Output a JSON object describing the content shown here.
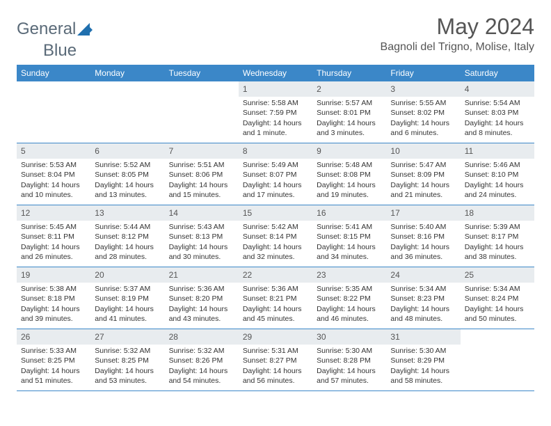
{
  "logo": {
    "word1": "General",
    "word2": "Blue"
  },
  "colors": {
    "header_bg": "#3b87c8",
    "daynum_bg": "#e8ecef",
    "logo_accent": "#1f6fae"
  },
  "title": "May 2024",
  "location": "Bagnoli del Trigno, Molise, Italy",
  "day_headers": [
    "Sunday",
    "Monday",
    "Tuesday",
    "Wednesday",
    "Thursday",
    "Friday",
    "Saturday"
  ],
  "weeks": [
    [
      {
        "empty": true
      },
      {
        "empty": true
      },
      {
        "empty": true
      },
      {
        "day": "1",
        "sunrise": "Sunrise: 5:58 AM",
        "sunset": "Sunset: 7:59 PM",
        "daylight": "Daylight: 14 hours and 1 minute."
      },
      {
        "day": "2",
        "sunrise": "Sunrise: 5:57 AM",
        "sunset": "Sunset: 8:01 PM",
        "daylight": "Daylight: 14 hours and 3 minutes."
      },
      {
        "day": "3",
        "sunrise": "Sunrise: 5:55 AM",
        "sunset": "Sunset: 8:02 PM",
        "daylight": "Daylight: 14 hours and 6 minutes."
      },
      {
        "day": "4",
        "sunrise": "Sunrise: 5:54 AM",
        "sunset": "Sunset: 8:03 PM",
        "daylight": "Daylight: 14 hours and 8 minutes."
      }
    ],
    [
      {
        "day": "5",
        "sunrise": "Sunrise: 5:53 AM",
        "sunset": "Sunset: 8:04 PM",
        "daylight": "Daylight: 14 hours and 10 minutes."
      },
      {
        "day": "6",
        "sunrise": "Sunrise: 5:52 AM",
        "sunset": "Sunset: 8:05 PM",
        "daylight": "Daylight: 14 hours and 13 minutes."
      },
      {
        "day": "7",
        "sunrise": "Sunrise: 5:51 AM",
        "sunset": "Sunset: 8:06 PM",
        "daylight": "Daylight: 14 hours and 15 minutes."
      },
      {
        "day": "8",
        "sunrise": "Sunrise: 5:49 AM",
        "sunset": "Sunset: 8:07 PM",
        "daylight": "Daylight: 14 hours and 17 minutes."
      },
      {
        "day": "9",
        "sunrise": "Sunrise: 5:48 AM",
        "sunset": "Sunset: 8:08 PM",
        "daylight": "Daylight: 14 hours and 19 minutes."
      },
      {
        "day": "10",
        "sunrise": "Sunrise: 5:47 AM",
        "sunset": "Sunset: 8:09 PM",
        "daylight": "Daylight: 14 hours and 21 minutes."
      },
      {
        "day": "11",
        "sunrise": "Sunrise: 5:46 AM",
        "sunset": "Sunset: 8:10 PM",
        "daylight": "Daylight: 14 hours and 24 minutes."
      }
    ],
    [
      {
        "day": "12",
        "sunrise": "Sunrise: 5:45 AM",
        "sunset": "Sunset: 8:11 PM",
        "daylight": "Daylight: 14 hours and 26 minutes."
      },
      {
        "day": "13",
        "sunrise": "Sunrise: 5:44 AM",
        "sunset": "Sunset: 8:12 PM",
        "daylight": "Daylight: 14 hours and 28 minutes."
      },
      {
        "day": "14",
        "sunrise": "Sunrise: 5:43 AM",
        "sunset": "Sunset: 8:13 PM",
        "daylight": "Daylight: 14 hours and 30 minutes."
      },
      {
        "day": "15",
        "sunrise": "Sunrise: 5:42 AM",
        "sunset": "Sunset: 8:14 PM",
        "daylight": "Daylight: 14 hours and 32 minutes."
      },
      {
        "day": "16",
        "sunrise": "Sunrise: 5:41 AM",
        "sunset": "Sunset: 8:15 PM",
        "daylight": "Daylight: 14 hours and 34 minutes."
      },
      {
        "day": "17",
        "sunrise": "Sunrise: 5:40 AM",
        "sunset": "Sunset: 8:16 PM",
        "daylight": "Daylight: 14 hours and 36 minutes."
      },
      {
        "day": "18",
        "sunrise": "Sunrise: 5:39 AM",
        "sunset": "Sunset: 8:17 PM",
        "daylight": "Daylight: 14 hours and 38 minutes."
      }
    ],
    [
      {
        "day": "19",
        "sunrise": "Sunrise: 5:38 AM",
        "sunset": "Sunset: 8:18 PM",
        "daylight": "Daylight: 14 hours and 39 minutes."
      },
      {
        "day": "20",
        "sunrise": "Sunrise: 5:37 AM",
        "sunset": "Sunset: 8:19 PM",
        "daylight": "Daylight: 14 hours and 41 minutes."
      },
      {
        "day": "21",
        "sunrise": "Sunrise: 5:36 AM",
        "sunset": "Sunset: 8:20 PM",
        "daylight": "Daylight: 14 hours and 43 minutes."
      },
      {
        "day": "22",
        "sunrise": "Sunrise: 5:36 AM",
        "sunset": "Sunset: 8:21 PM",
        "daylight": "Daylight: 14 hours and 45 minutes."
      },
      {
        "day": "23",
        "sunrise": "Sunrise: 5:35 AM",
        "sunset": "Sunset: 8:22 PM",
        "daylight": "Daylight: 14 hours and 46 minutes."
      },
      {
        "day": "24",
        "sunrise": "Sunrise: 5:34 AM",
        "sunset": "Sunset: 8:23 PM",
        "daylight": "Daylight: 14 hours and 48 minutes."
      },
      {
        "day": "25",
        "sunrise": "Sunrise: 5:34 AM",
        "sunset": "Sunset: 8:24 PM",
        "daylight": "Daylight: 14 hours and 50 minutes."
      }
    ],
    [
      {
        "day": "26",
        "sunrise": "Sunrise: 5:33 AM",
        "sunset": "Sunset: 8:25 PM",
        "daylight": "Daylight: 14 hours and 51 minutes."
      },
      {
        "day": "27",
        "sunrise": "Sunrise: 5:32 AM",
        "sunset": "Sunset: 8:25 PM",
        "daylight": "Daylight: 14 hours and 53 minutes."
      },
      {
        "day": "28",
        "sunrise": "Sunrise: 5:32 AM",
        "sunset": "Sunset: 8:26 PM",
        "daylight": "Daylight: 14 hours and 54 minutes."
      },
      {
        "day": "29",
        "sunrise": "Sunrise: 5:31 AM",
        "sunset": "Sunset: 8:27 PM",
        "daylight": "Daylight: 14 hours and 56 minutes."
      },
      {
        "day": "30",
        "sunrise": "Sunrise: 5:30 AM",
        "sunset": "Sunset: 8:28 PM",
        "daylight": "Daylight: 14 hours and 57 minutes."
      },
      {
        "day": "31",
        "sunrise": "Sunrise: 5:30 AM",
        "sunset": "Sunset: 8:29 PM",
        "daylight": "Daylight: 14 hours and 58 minutes."
      },
      {
        "empty": true
      }
    ]
  ]
}
